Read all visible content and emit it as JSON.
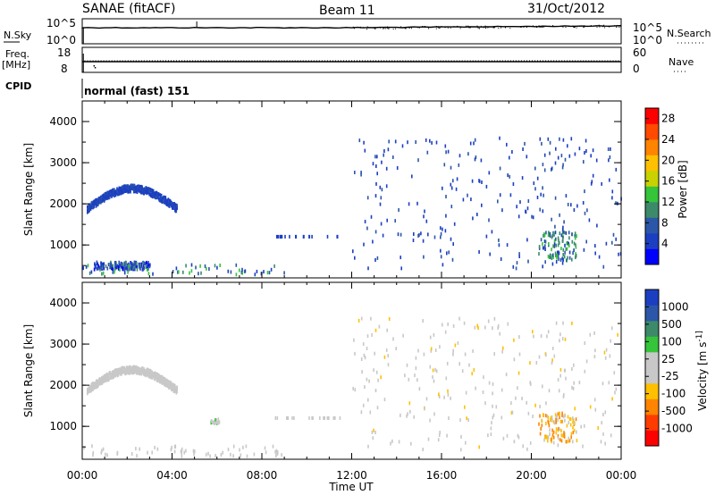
{
  "header": {
    "title": "SANAE (fitACF)",
    "beam": "Beam 11",
    "date": "31/Oct/2012"
  },
  "noise_panel": {
    "left_label": "N.Sky",
    "right_label": "N.Search",
    "left_ticks": [
      "10^5",
      "10^0"
    ],
    "right_ticks": [
      "10^5",
      "10^0"
    ]
  },
  "freq_panel": {
    "left_label_1": "Freq.",
    "left_label_2": "[MHz]",
    "right_label": "Nave",
    "left_ticks": [
      "18",
      "8"
    ],
    "right_ticks": [
      "60",
      "0"
    ]
  },
  "cpid": {
    "label": "CPID",
    "value": "normal (fast) 151"
  },
  "chart_data": [
    {
      "type": "heatmap",
      "panel": "power",
      "ylabel": "Slant Range [km]",
      "xlabel": "",
      "xlim": [
        "00:00",
        "24:00"
      ],
      "ylim": [
        200,
        4500
      ],
      "y_ticks": [
        "1000",
        "2000",
        "3000",
        "4000"
      ],
      "x_ticks": [
        "00:00",
        "04:00",
        "08:00",
        "12:00",
        "16:00",
        "20:00",
        "00:00"
      ],
      "colorbar": {
        "label": "Power [dB]",
        "ticks": [
          "4",
          "8",
          "12",
          "16",
          "20",
          "24",
          "28"
        ],
        "range": [
          0,
          30
        ],
        "colors": [
          "#0000ff",
          "#1c3fc2",
          "#2c56a8",
          "#3c8a6a",
          "#35c43a",
          "#c8d200",
          "#ffc000",
          "#ff8400",
          "#ff4a00",
          "#ff0000"
        ]
      },
      "features": [
        {
          "name": "arc",
          "t_start": 0.2,
          "t_end": 4.2,
          "range_min": 1700,
          "range_max": 2450,
          "power": 4
        },
        {
          "name": "near-range band",
          "t_start": 0.5,
          "t_end": 3.0,
          "range_min": 380,
          "range_max": 560,
          "power": 6
        },
        {
          "name": "scattered echoes",
          "t_start": 12.0,
          "t_end": 24.0,
          "range_min": 400,
          "range_max": 3600,
          "power": 4
        },
        {
          "name": "evening patch",
          "t_start": 20.3,
          "t_end": 22.0,
          "range_min": 600,
          "range_max": 1300,
          "power": 10
        }
      ]
    },
    {
      "type": "heatmap",
      "panel": "velocity",
      "ylabel": "Slant Range [km]",
      "xlabel": "Time UT",
      "xlim": [
        "00:00",
        "24:00"
      ],
      "ylim": [
        200,
        4500
      ],
      "y_ticks": [
        "1000",
        "2000",
        "3000",
        "4000"
      ],
      "x_ticks": [
        "00:00",
        "04:00",
        "08:00",
        "12:00",
        "16:00",
        "20:00",
        "00:00"
      ],
      "colorbar": {
        "label": "Velocity [m s^-1]",
        "ticks": [
          "1000",
          "500",
          "100",
          "25",
          "-25",
          "-100",
          "-500",
          "-1000"
        ],
        "range": [
          -1200,
          1200
        ],
        "colors": [
          "#ff0000",
          "#ff3c00",
          "#ff8400",
          "#ffc000",
          "#c8c8c8",
          "#c8c8c8",
          "#35c43a",
          "#3c8a6a",
          "#2c56a8",
          "#1c3fc2"
        ]
      },
      "features": [
        {
          "name": "arc (ground scatter)",
          "t_start": 0.2,
          "t_end": 4.2,
          "range_min": 1700,
          "range_max": 2450,
          "velocity": 0
        },
        {
          "name": "green patch",
          "t_start": 5.7,
          "t_end": 6.1,
          "range_min": 1050,
          "range_max": 1150,
          "velocity": 150
        },
        {
          "name": "scattered echoes",
          "t_start": 12.0,
          "t_end": 24.0,
          "range_min": 400,
          "range_max": 3600,
          "velocity": -150
        },
        {
          "name": "evening patch",
          "t_start": 20.3,
          "t_end": 22.0,
          "range_min": 600,
          "range_max": 1300,
          "velocity": -400
        }
      ]
    }
  ]
}
